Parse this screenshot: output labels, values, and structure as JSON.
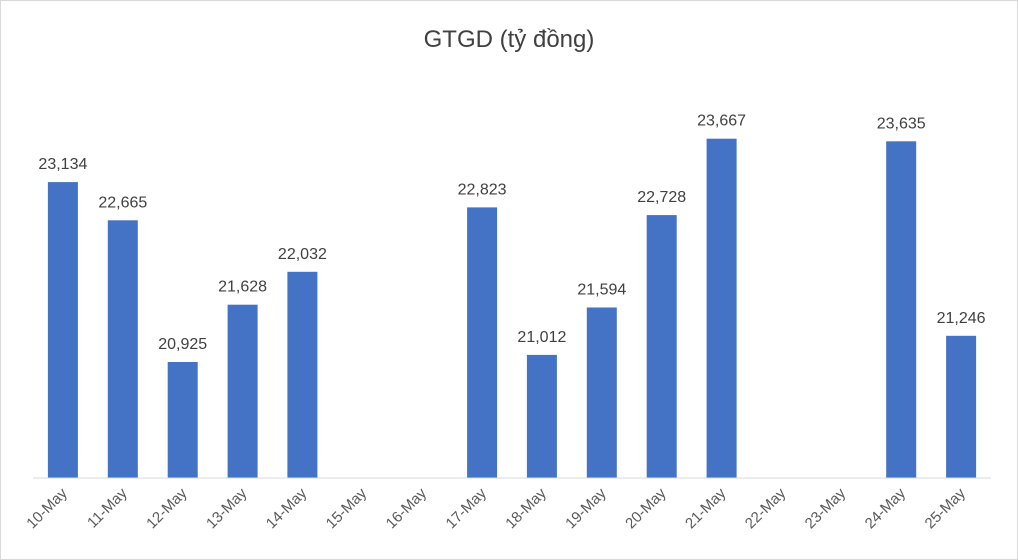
{
  "chart_data": {
    "type": "bar",
    "title": "GTGD (tỷ đồng)",
    "xlabel": "",
    "ylabel": "",
    "categories": [
      "10-May",
      "11-May",
      "12-May",
      "13-May",
      "14-May",
      "15-May",
      "16-May",
      "17-May",
      "18-May",
      "19-May",
      "20-May",
      "21-May",
      "22-May",
      "23-May",
      "24-May",
      "25-May"
    ],
    "values": [
      23134,
      22665,
      20925,
      21628,
      22032,
      null,
      null,
      22823,
      21012,
      21594,
      22728,
      23667,
      null,
      null,
      23635,
      21246
    ],
    "value_labels": [
      "23,134",
      "22,665",
      "20,925",
      "21,628",
      "22,032",
      "",
      "",
      "22,823",
      "21,012",
      "21,594",
      "22,728",
      "23,667",
      "",
      "",
      "23,635",
      "21,246"
    ],
    "ylim": [
      19500,
      24400
    ],
    "grid": false,
    "legend": "none",
    "bar_color": "#4472c4",
    "axis_color": "#d9d9d9"
  }
}
